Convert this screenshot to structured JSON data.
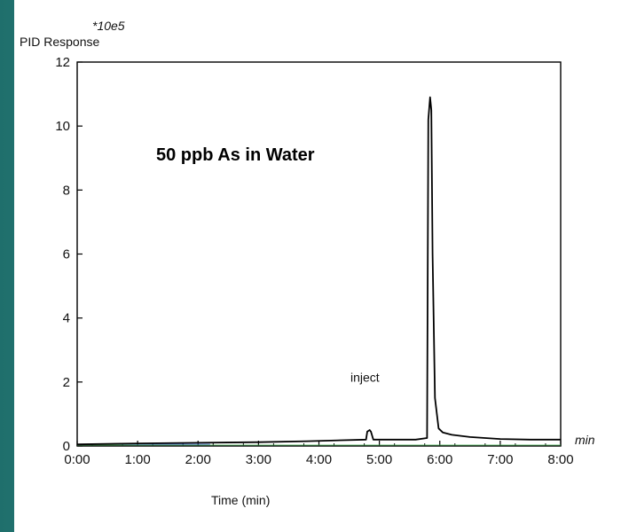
{
  "chart_data": {
    "type": "line",
    "title": "50 ppb As in Water",
    "ylabel": "PID Response",
    "ylabel_scale": "*10e5",
    "xlabel": "Time (min)",
    "x_unit": "min",
    "ylim": [
      0,
      12
    ],
    "xlim": [
      0,
      8
    ],
    "y_ticks": [
      "0",
      "2",
      "4",
      "6",
      "8",
      "10",
      "12"
    ],
    "x_ticks": [
      "0:00",
      "1:00",
      "2:00",
      "3:00",
      "4:00",
      "5:00",
      "6:00",
      "7:00",
      "8:00"
    ],
    "annotation": {
      "text": "inject",
      "x": 4.82,
      "y": 0.9
    },
    "series": [
      {
        "x": [
          0,
          1,
          2,
          3,
          3.8,
          4.78,
          4.8,
          4.84,
          4.86,
          4.9,
          5.6,
          5.79,
          5.81,
          5.84,
          5.86,
          5.88,
          5.92,
          5.98,
          6.05,
          6.2,
          6.5,
          7.0,
          7.5,
          8.0
        ],
        "y": [
          0.05,
          0.08,
          0.1,
          0.12,
          0.15,
          0.2,
          0.45,
          0.5,
          0.45,
          0.2,
          0.2,
          0.25,
          10.2,
          10.9,
          10.5,
          6.0,
          1.5,
          0.55,
          0.42,
          0.35,
          0.28,
          0.22,
          0.2,
          0.2
        ]
      }
    ]
  }
}
